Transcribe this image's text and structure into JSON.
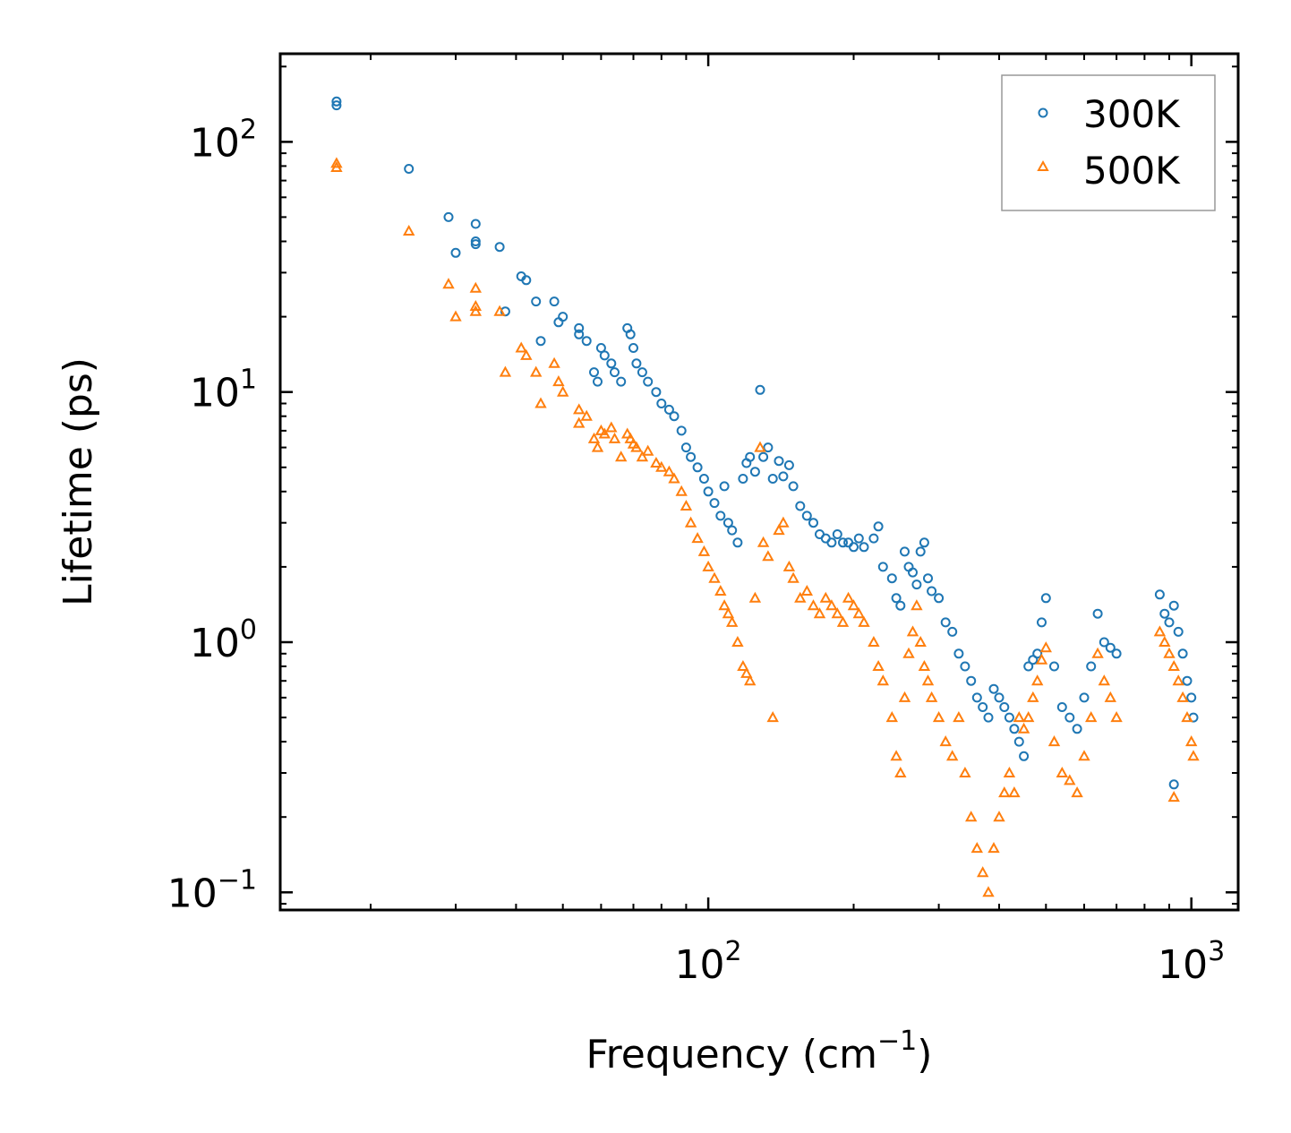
{
  "chart_data": {
    "type": "scatter",
    "title": "",
    "xlabel": "Frequency (cm",
    "xlabel_sup": "−1",
    "xlabel_tail": ")",
    "ylabel": "Lifetime (ps)",
    "xscale": "log",
    "yscale": "log",
    "xlim": [
      13,
      1250
    ],
    "ylim": [
      0.085,
      225
    ],
    "xticks": [
      {
        "value": 100,
        "base": "10",
        "exp": "2"
      },
      {
        "value": 1000,
        "base": "10",
        "exp": "3"
      }
    ],
    "yticks": [
      {
        "value": 0.1,
        "base": "10",
        "exp": "−1"
      },
      {
        "value": 1,
        "base": "10",
        "exp": "0"
      },
      {
        "value": 10,
        "base": "10",
        "exp": "1"
      },
      {
        "value": 100,
        "base": "10",
        "exp": "2"
      }
    ],
    "legend_position": "top-right",
    "series": [
      {
        "name": "300K",
        "marker": "circle",
        "color": "#1f77b4",
        "points": [
          [
            17,
            145
          ],
          [
            17,
            140
          ],
          [
            24,
            78
          ],
          [
            29,
            50
          ],
          [
            30,
            36
          ],
          [
            33,
            47
          ],
          [
            33,
            40
          ],
          [
            33,
            39
          ],
          [
            37,
            38
          ],
          [
            38,
            21
          ],
          [
            41,
            29
          ],
          [
            42,
            28
          ],
          [
            44,
            23
          ],
          [
            45,
            16
          ],
          [
            48,
            23
          ],
          [
            49,
            19
          ],
          [
            50,
            20
          ],
          [
            54,
            18
          ],
          [
            54,
            17
          ],
          [
            56,
            16
          ],
          [
            58,
            12
          ],
          [
            59,
            11
          ],
          [
            60,
            15
          ],
          [
            61,
            14
          ],
          [
            63,
            13
          ],
          [
            64,
            12
          ],
          [
            66,
            11
          ],
          [
            68,
            18
          ],
          [
            69,
            17
          ],
          [
            70,
            15
          ],
          [
            71,
            13
          ],
          [
            73,
            12
          ],
          [
            75,
            11
          ],
          [
            78,
            10
          ],
          [
            80,
            9
          ],
          [
            83,
            8.5
          ],
          [
            85,
            8
          ],
          [
            88,
            7
          ],
          [
            90,
            6
          ],
          [
            92,
            5.5
          ],
          [
            95,
            5
          ],
          [
            98,
            4.5
          ],
          [
            100,
            4
          ],
          [
            103,
            3.6
          ],
          [
            106,
            3.2
          ],
          [
            108,
            4.2
          ],
          [
            110,
            3
          ],
          [
            112,
            2.8
          ],
          [
            115,
            2.5
          ],
          [
            118,
            4.5
          ],
          [
            120,
            5.2
          ],
          [
            122,
            5.5
          ],
          [
            125,
            4.8
          ],
          [
            128,
            10.2
          ],
          [
            130,
            5.5
          ],
          [
            133,
            6
          ],
          [
            136,
            4.5
          ],
          [
            140,
            5.3
          ],
          [
            143,
            4.6
          ],
          [
            147,
            5.1
          ],
          [
            150,
            4.2
          ],
          [
            155,
            3.5
          ],
          [
            160,
            3.2
          ],
          [
            165,
            3
          ],
          [
            170,
            2.7
          ],
          [
            175,
            2.6
          ],
          [
            180,
            2.5
          ],
          [
            185,
            2.7
          ],
          [
            190,
            2.5
          ],
          [
            195,
            2.5
          ],
          [
            200,
            2.4
          ],
          [
            205,
            2.6
          ],
          [
            210,
            2.4
          ],
          [
            220,
            2.6
          ],
          [
            225,
            2.9
          ],
          [
            230,
            2
          ],
          [
            240,
            1.8
          ],
          [
            245,
            1.5
          ],
          [
            250,
            1.4
          ],
          [
            255,
            2.3
          ],
          [
            260,
            2
          ],
          [
            265,
            1.9
          ],
          [
            270,
            1.7
          ],
          [
            275,
            2.3
          ],
          [
            280,
            2.5
          ],
          [
            285,
            1.8
          ],
          [
            290,
            1.6
          ],
          [
            300,
            1.5
          ],
          [
            310,
            1.2
          ],
          [
            320,
            1.1
          ],
          [
            330,
            0.9
          ],
          [
            340,
            0.8
          ],
          [
            350,
            0.7
          ],
          [
            360,
            0.6
          ],
          [
            370,
            0.55
          ],
          [
            380,
            0.5
          ],
          [
            390,
            0.65
          ],
          [
            400,
            0.6
          ],
          [
            410,
            0.55
          ],
          [
            420,
            0.5
          ],
          [
            430,
            0.45
          ],
          [
            440,
            0.4
          ],
          [
            450,
            0.35
          ],
          [
            460,
            0.8
          ],
          [
            470,
            0.85
          ],
          [
            480,
            0.9
          ],
          [
            490,
            1.2
          ],
          [
            500,
            1.5
          ],
          [
            520,
            0.8
          ],
          [
            540,
            0.55
          ],
          [
            560,
            0.5
          ],
          [
            580,
            0.45
          ],
          [
            600,
            0.6
          ],
          [
            620,
            0.8
          ],
          [
            640,
            1.3
          ],
          [
            660,
            1
          ],
          [
            680,
            0.95
          ],
          [
            700,
            0.9
          ],
          [
            860,
            1.55
          ],
          [
            880,
            1.3
          ],
          [
            900,
            1.2
          ],
          [
            920,
            1.4
          ],
          [
            940,
            1.1
          ],
          [
            960,
            0.9
          ],
          [
            980,
            0.7
          ],
          [
            1000,
            0.6
          ],
          [
            1010,
            0.5
          ],
          [
            920,
            0.27
          ]
        ]
      },
      {
        "name": "500K",
        "marker": "triangle",
        "color": "#ff7f0e",
        "points": [
          [
            17,
            82
          ],
          [
            17,
            79
          ],
          [
            24,
            44
          ],
          [
            29,
            27
          ],
          [
            30,
            20
          ],
          [
            33,
            26
          ],
          [
            33,
            22
          ],
          [
            33,
            21
          ],
          [
            37,
            21
          ],
          [
            38,
            12
          ],
          [
            41,
            15
          ],
          [
            42,
            14
          ],
          [
            44,
            12
          ],
          [
            45,
            9
          ],
          [
            48,
            13
          ],
          [
            49,
            11
          ],
          [
            50,
            10
          ],
          [
            54,
            8.5
          ],
          [
            54,
            7.5
          ],
          [
            56,
            8
          ],
          [
            58,
            6.5
          ],
          [
            59,
            6
          ],
          [
            60,
            7
          ],
          [
            61,
            6.8
          ],
          [
            63,
            7.2
          ],
          [
            64,
            6.5
          ],
          [
            66,
            5.5
          ],
          [
            68,
            6.8
          ],
          [
            69,
            6.5
          ],
          [
            70,
            6.2
          ],
          [
            71,
            6
          ],
          [
            73,
            5.5
          ],
          [
            75,
            5.8
          ],
          [
            78,
            5.2
          ],
          [
            80,
            5
          ],
          [
            83,
            4.8
          ],
          [
            85,
            4.5
          ],
          [
            88,
            4
          ],
          [
            90,
            3.5
          ],
          [
            92,
            3
          ],
          [
            95,
            2.6
          ],
          [
            98,
            2.3
          ],
          [
            100,
            2
          ],
          [
            103,
            1.8
          ],
          [
            106,
            1.6
          ],
          [
            108,
            1.4
          ],
          [
            110,
            1.3
          ],
          [
            112,
            1.2
          ],
          [
            115,
            1
          ],
          [
            118,
            0.8
          ],
          [
            120,
            0.75
          ],
          [
            122,
            0.7
          ],
          [
            125,
            1.5
          ],
          [
            128,
            6
          ],
          [
            130,
            2.5
          ],
          [
            133,
            2.2
          ],
          [
            136,
            0.5
          ],
          [
            140,
            2.8
          ],
          [
            143,
            3
          ],
          [
            147,
            2
          ],
          [
            150,
            1.8
          ],
          [
            155,
            1.5
          ],
          [
            160,
            1.6
          ],
          [
            165,
            1.4
          ],
          [
            170,
            1.3
          ],
          [
            175,
            1.5
          ],
          [
            180,
            1.4
          ],
          [
            185,
            1.3
          ],
          [
            190,
            1.2
          ],
          [
            195,
            1.5
          ],
          [
            200,
            1.4
          ],
          [
            205,
            1.3
          ],
          [
            210,
            1.2
          ],
          [
            220,
            1
          ],
          [
            225,
            0.8
          ],
          [
            230,
            0.7
          ],
          [
            240,
            0.5
          ],
          [
            245,
            0.35
          ],
          [
            250,
            0.3
          ],
          [
            255,
            0.6
          ],
          [
            260,
            0.9
          ],
          [
            265,
            1.1
          ],
          [
            270,
            1.4
          ],
          [
            275,
            1
          ],
          [
            280,
            0.8
          ],
          [
            285,
            0.7
          ],
          [
            290,
            0.6
          ],
          [
            300,
            0.5
          ],
          [
            310,
            0.4
          ],
          [
            320,
            0.35
          ],
          [
            330,
            0.5
          ],
          [
            340,
            0.3
          ],
          [
            350,
            0.2
          ],
          [
            360,
            0.15
          ],
          [
            370,
            0.12
          ],
          [
            380,
            0.1
          ],
          [
            390,
            0.15
          ],
          [
            400,
            0.2
          ],
          [
            410,
            0.25
          ],
          [
            420,
            0.3
          ],
          [
            430,
            0.25
          ],
          [
            440,
            0.5
          ],
          [
            450,
            0.45
          ],
          [
            460,
            0.5
          ],
          [
            470,
            0.6
          ],
          [
            480,
            0.7
          ],
          [
            490,
            0.85
          ],
          [
            500,
            0.95
          ],
          [
            520,
            0.4
          ],
          [
            540,
            0.3
          ],
          [
            560,
            0.28
          ],
          [
            580,
            0.25
          ],
          [
            600,
            0.35
          ],
          [
            620,
            0.5
          ],
          [
            640,
            0.9
          ],
          [
            660,
            0.7
          ],
          [
            680,
            0.6
          ],
          [
            700,
            0.5
          ],
          [
            860,
            1.1
          ],
          [
            880,
            1
          ],
          [
            900,
            0.9
          ],
          [
            920,
            0.8
          ],
          [
            940,
            0.7
          ],
          [
            960,
            0.6
          ],
          [
            980,
            0.5
          ],
          [
            1000,
            0.4
          ],
          [
            1010,
            0.35
          ],
          [
            920,
            0.24
          ]
        ]
      }
    ]
  }
}
